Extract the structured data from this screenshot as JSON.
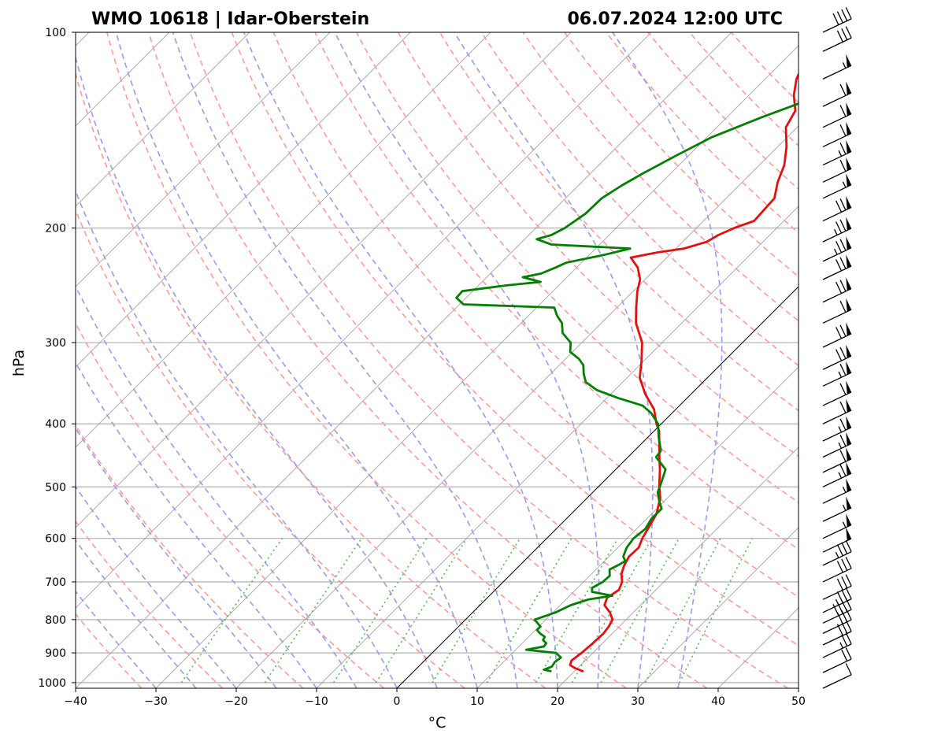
{
  "chart_data": {
    "type": "line",
    "title_left": "WMO 10618 | Idar-Oberstein",
    "title_right": "06.07.2024 12:00 UTC",
    "xlabel": "°C",
    "ylabel": "hPa",
    "xlim": [
      -40,
      50
    ],
    "ylim": [
      1020,
      100
    ],
    "x_ticks": [
      -40,
      -30,
      -20,
      -10,
      0,
      10,
      20,
      30,
      40,
      50
    ],
    "x_tick_labels": [
      "−40",
      "−30",
      "−20",
      "−10",
      "0",
      "10",
      "20",
      "30",
      "40",
      "50"
    ],
    "y_ticks": [
      1000,
      900,
      800,
      700,
      600,
      500,
      400,
      300,
      200,
      100
    ],
    "y_tick_labels": [
      "1000",
      "900",
      "800",
      "700",
      "600",
      "500",
      "400",
      "300",
      "200",
      "100"
    ],
    "grid": true,
    "colors": {
      "temperature": "#e31010",
      "dewpoint": "#007f00",
      "dry_adiabat": "#ff9a9a",
      "moist_adiabat": "#9a9aee",
      "mixing_ratio": "#55b855",
      "isotherm": "#8c8c8c",
      "zero_isotherm": "#000000"
    },
    "series": [
      {
        "name": "Temperature",
        "unit": "°C",
        "points": [
          [
            960,
            21.0
          ],
          [
            950,
            19.7
          ],
          [
            940,
            18.7
          ],
          [
            925,
            18.3
          ],
          [
            900,
            18.6
          ],
          [
            870,
            18.8
          ],
          [
            840,
            18.9
          ],
          [
            820,
            18.7
          ],
          [
            800,
            18.3
          ],
          [
            780,
            17.1
          ],
          [
            760,
            15.5
          ],
          [
            740,
            14.9
          ],
          [
            720,
            15.4
          ],
          [
            700,
            14.8
          ],
          [
            680,
            13.7
          ],
          [
            660,
            13.0
          ],
          [
            640,
            12.5
          ],
          [
            620,
            12.6
          ],
          [
            600,
            11.9
          ],
          [
            580,
            11.4
          ],
          [
            550,
            10.6
          ],
          [
            520,
            9.1
          ],
          [
            500,
            7.6
          ],
          [
            470,
            5.5
          ],
          [
            450,
            3.9
          ],
          [
            430,
            2.3
          ],
          [
            410,
            0.6
          ],
          [
            400,
            -0.6
          ],
          [
            380,
            -2.7
          ],
          [
            360,
            -5.7
          ],
          [
            340,
            -8.4
          ],
          [
            320,
            -10.3
          ],
          [
            300,
            -12.5
          ],
          [
            280,
            -15.7
          ],
          [
            265,
            -17.6
          ],
          [
            250,
            -19.5
          ],
          [
            240,
            -20.6
          ],
          [
            230,
            -22.4
          ],
          [
            222,
            -24.5
          ],
          [
            218,
            -21.8
          ],
          [
            215,
            -19.0
          ],
          [
            210,
            -17.0
          ],
          [
            205,
            -16.4
          ],
          [
            200,
            -15.3
          ],
          [
            195,
            -13.7
          ],
          [
            190,
            -13.8
          ],
          [
            180,
            -14.0
          ],
          [
            170,
            -15.6
          ],
          [
            160,
            -16.9
          ],
          [
            150,
            -18.9
          ],
          [
            140,
            -21.4
          ],
          [
            132,
            -22.3
          ],
          [
            125,
            -24.4
          ],
          [
            118,
            -26.1
          ],
          [
            112,
            -27.1
          ],
          [
            106,
            -28.1
          ],
          [
            100,
            -29.6
          ]
        ]
      },
      {
        "name": "Dewpoint",
        "unit": "°C",
        "points": [
          [
            960,
            17.0
          ],
          [
            955,
            16.0
          ],
          [
            945,
            16.6
          ],
          [
            930,
            16.4
          ],
          [
            915,
            16.6
          ],
          [
            900,
            15.4
          ],
          [
            890,
            11.3
          ],
          [
            880,
            13.1
          ],
          [
            870,
            13.0
          ],
          [
            860,
            12.2
          ],
          [
            850,
            12.0
          ],
          [
            840,
            11.0
          ],
          [
            830,
            10.2
          ],
          [
            820,
            10.2
          ],
          [
            800,
            8.6
          ],
          [
            780,
            10.3
          ],
          [
            760,
            11.3
          ],
          [
            745,
            12.8
          ],
          [
            735,
            15.3
          ],
          [
            725,
            12.3
          ],
          [
            715,
            11.8
          ],
          [
            700,
            12.4
          ],
          [
            685,
            12.5
          ],
          [
            670,
            11.7
          ],
          [
            660,
            12.2
          ],
          [
            650,
            12.6
          ],
          [
            640,
            11.8
          ],
          [
            620,
            11.1
          ],
          [
            600,
            10.8
          ],
          [
            580,
            11.1
          ],
          [
            560,
            10.6
          ],
          [
            540,
            10.6
          ],
          [
            525,
            9.3
          ],
          [
            510,
            8.1
          ],
          [
            490,
            7.2
          ],
          [
            470,
            6.2
          ],
          [
            450,
            3.5
          ],
          [
            440,
            3.3
          ],
          [
            420,
            1.4
          ],
          [
            400,
            -0.4
          ],
          [
            385,
            -2.6
          ],
          [
            375,
            -4.6
          ],
          [
            365,
            -8.6
          ],
          [
            355,
            -12.2
          ],
          [
            345,
            -14.6
          ],
          [
            335,
            -15.9
          ],
          [
            325,
            -17.0
          ],
          [
            318,
            -18.3
          ],
          [
            310,
            -20.3
          ],
          [
            300,
            -21.4
          ],
          [
            290,
            -23.6
          ],
          [
            280,
            -24.9
          ],
          [
            273,
            -26.4
          ],
          [
            265,
            -27.8
          ],
          [
            262,
            -39.5
          ],
          [
            256,
            -41.2
          ],
          [
            250,
            -41.3
          ],
          [
            245,
            -36.5
          ],
          [
            242,
            -32.7
          ],
          [
            238,
            -35.5
          ],
          [
            235,
            -33.7
          ],
          [
            230,
            -32.6
          ],
          [
            226,
            -31.9
          ],
          [
            220,
            -28.2
          ],
          [
            215,
            -25.7
          ],
          [
            212,
            -36.0
          ],
          [
            208,
            -38.5
          ],
          [
            205,
            -37.2
          ],
          [
            200,
            -36.4
          ],
          [
            190,
            -35.6
          ],
          [
            180,
            -35.5
          ],
          [
            172,
            -34.6
          ],
          [
            165,
            -33.5
          ],
          [
            155,
            -31.6
          ],
          [
            145,
            -29.4
          ],
          [
            135,
            -25.6
          ],
          [
            125,
            -21.0
          ],
          [
            118,
            -17.6
          ],
          [
            110,
            -14.7
          ],
          [
            104,
            -13.3
          ],
          [
            100,
            -12.3
          ]
        ]
      }
    ],
    "wind_barbs": [
      {
        "pressure": 1020,
        "speed_kt": 10,
        "direction_deg": 240
      },
      {
        "pressure": 965,
        "speed_kt": 20,
        "direction_deg": 240
      },
      {
        "pressure": 915,
        "speed_kt": 25,
        "direction_deg": 240
      },
      {
        "pressure": 875,
        "speed_kt": 30,
        "direction_deg": 240
      },
      {
        "pressure": 840,
        "speed_kt": 30,
        "direction_deg": 240
      },
      {
        "pressure": 810,
        "speed_kt": 40,
        "direction_deg": 240
      },
      {
        "pressure": 780,
        "speed_kt": 35,
        "direction_deg": 240
      },
      {
        "pressure": 745,
        "speed_kt": 30,
        "direction_deg": 240
      },
      {
        "pressure": 700,
        "speed_kt": 30,
        "direction_deg": 240
      },
      {
        "pressure": 660,
        "speed_kt": 35,
        "direction_deg": 240
      },
      {
        "pressure": 630,
        "speed_kt": 50,
        "direction_deg": 240
      },
      {
        "pressure": 600,
        "speed_kt": 55,
        "direction_deg": 240
      },
      {
        "pressure": 565,
        "speed_kt": 55,
        "direction_deg": 240
      },
      {
        "pressure": 530,
        "speed_kt": 55,
        "direction_deg": 240
      },
      {
        "pressure": 500,
        "speed_kt": 65,
        "direction_deg": 240
      },
      {
        "pressure": 475,
        "speed_kt": 60,
        "direction_deg": 240
      },
      {
        "pressure": 450,
        "speed_kt": 65,
        "direction_deg": 240
      },
      {
        "pressure": 425,
        "speed_kt": 65,
        "direction_deg": 240
      },
      {
        "pressure": 400,
        "speed_kt": 60,
        "direction_deg": 240
      },
      {
        "pressure": 375,
        "speed_kt": 60,
        "direction_deg": 240
      },
      {
        "pressure": 350,
        "speed_kt": 65,
        "direction_deg": 240
      },
      {
        "pressure": 330,
        "speed_kt": 70,
        "direction_deg": 240
      },
      {
        "pressure": 305,
        "speed_kt": 70,
        "direction_deg": 240
      },
      {
        "pressure": 280,
        "speed_kt": 60,
        "direction_deg": 240
      },
      {
        "pressure": 260,
        "speed_kt": 70,
        "direction_deg": 240
      },
      {
        "pressure": 240,
        "speed_kt": 70,
        "direction_deg": 240
      },
      {
        "pressure": 225,
        "speed_kt": 75,
        "direction_deg": 240
      },
      {
        "pressure": 210,
        "speed_kt": 75,
        "direction_deg": 240
      },
      {
        "pressure": 195,
        "speed_kt": 70,
        "direction_deg": 240
      },
      {
        "pressure": 180,
        "speed_kt": 55,
        "direction_deg": 240
      },
      {
        "pressure": 170,
        "speed_kt": 60,
        "direction_deg": 240
      },
      {
        "pressure": 160,
        "speed_kt": 65,
        "direction_deg": 240
      },
      {
        "pressure": 150,
        "speed_kt": 60,
        "direction_deg": 240
      },
      {
        "pressure": 140,
        "speed_kt": 60,
        "direction_deg": 240
      },
      {
        "pressure": 130,
        "speed_kt": 60,
        "direction_deg": 240
      },
      {
        "pressure": 118,
        "speed_kt": 55,
        "direction_deg": 240
      },
      {
        "pressure": 107,
        "speed_kt": 30,
        "direction_deg": 240
      },
      {
        "pressure": 100,
        "speed_kt": 40,
        "direction_deg": 240
      }
    ],
    "background_lines": {
      "dry_adiabats_theta_K": [
        230,
        240,
        250,
        260,
        270,
        280,
        290,
        300,
        310,
        320,
        330,
        340,
        350,
        360,
        370,
        380,
        390,
        400,
        410,
        420,
        430,
        440,
        450
      ],
      "moist_adiabats_start_C": [
        -30,
        -25,
        -20,
        -15,
        -10,
        -5,
        0,
        5,
        10,
        15,
        20,
        25,
        30,
        35
      ],
      "mixing_ratios_g_per_kg": [
        0.4,
        1,
        2,
        3,
        5,
        8,
        12,
        16,
        20,
        28,
        36
      ],
      "isotherms_C": [
        -150,
        -140,
        -130,
        -120,
        -110,
        -100,
        -90,
        -80,
        -70,
        -60,
        -50,
        -40,
        -30,
        -20,
        -10,
        10,
        20,
        30,
        40,
        50
      ],
      "zero_isotherm_C": 0
    }
  }
}
